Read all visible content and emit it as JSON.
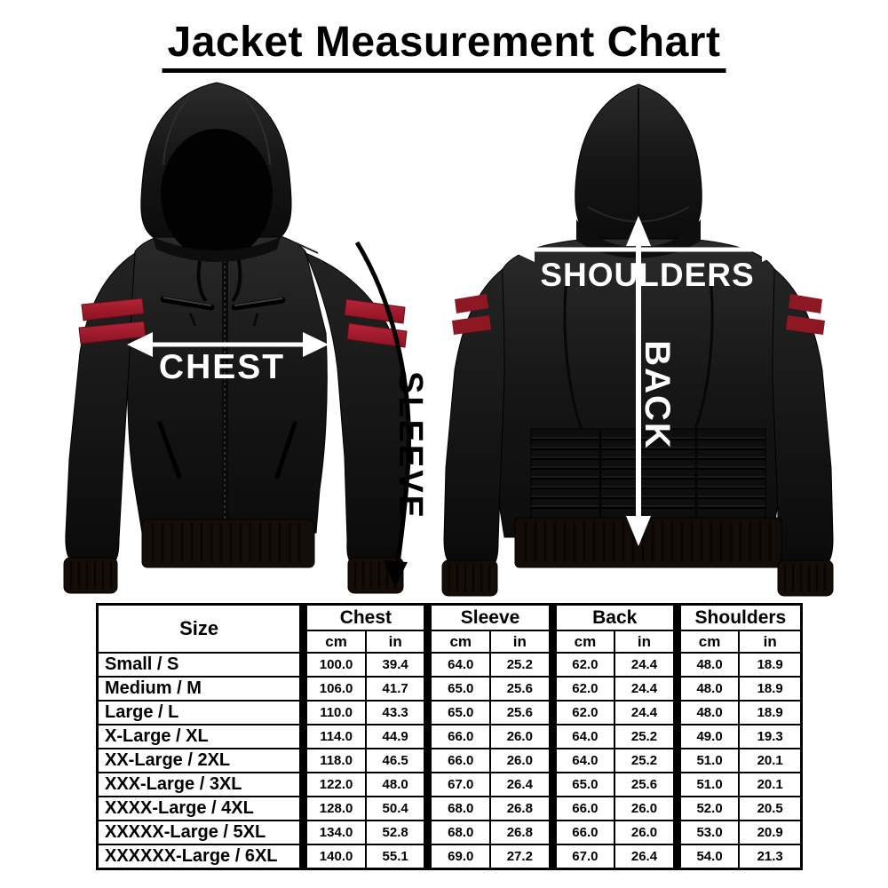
{
  "chart_data": {
    "type": "table",
    "title": "Jacket Measurement Chart",
    "size_header": "Size",
    "groups": [
      {
        "label": "Chest",
        "units": [
          "cm",
          "in"
        ]
      },
      {
        "label": "Sleeve",
        "units": [
          "cm",
          "in"
        ]
      },
      {
        "label": "Back",
        "units": [
          "cm",
          "in"
        ]
      },
      {
        "label": "Shoulders",
        "units": [
          "cm",
          "in"
        ]
      }
    ],
    "rows": [
      {
        "size": "Small / S",
        "values": [
          "100.0",
          "39.4",
          "64.0",
          "25.2",
          "62.0",
          "24.4",
          "48.0",
          "18.9"
        ]
      },
      {
        "size": "Medium / M",
        "values": [
          "106.0",
          "41.7",
          "65.0",
          "25.6",
          "62.0",
          "24.4",
          "48.0",
          "18.9"
        ]
      },
      {
        "size": "Large / L",
        "values": [
          "110.0",
          "43.3",
          "65.0",
          "25.6",
          "62.0",
          "24.4",
          "48.0",
          "18.9"
        ]
      },
      {
        "size": "X-Large / XL",
        "values": [
          "114.0",
          "44.9",
          "66.0",
          "26.0",
          "64.0",
          "25.2",
          "49.0",
          "19.3"
        ]
      },
      {
        "size": "XX-Large / 2XL",
        "values": [
          "118.0",
          "46.5",
          "66.0",
          "26.0",
          "64.0",
          "25.2",
          "51.0",
          "20.1"
        ]
      },
      {
        "size": "XXX-Large / 3XL",
        "values": [
          "122.0",
          "48.0",
          "67.0",
          "26.4",
          "65.0",
          "25.6",
          "51.0",
          "20.1"
        ]
      },
      {
        "size": "XXXX-Large / 4XL",
        "values": [
          "128.0",
          "50.4",
          "68.0",
          "26.8",
          "66.0",
          "26.0",
          "52.0",
          "20.5"
        ]
      },
      {
        "size": "XXXXX-Large / 5XL",
        "values": [
          "134.0",
          "52.8",
          "68.0",
          "26.8",
          "66.0",
          "26.0",
          "53.0",
          "20.9"
        ]
      },
      {
        "size": "XXXXXX-Large / 6XL",
        "values": [
          "140.0",
          "55.1",
          "69.0",
          "27.2",
          "67.0",
          "26.4",
          "54.0",
          "21.3"
        ]
      }
    ]
  },
  "diagram": {
    "front_view": {
      "chest_label": "CHEST",
      "sleeve_label": "SLEEVE"
    },
    "back_view": {
      "shoulders_label": "SHOULDERS",
      "back_label": "BACK"
    },
    "colors": {
      "jacket_leather": "#161616",
      "hood_interior": "#020202",
      "stripe_red": "#a81f30",
      "ribbing_dark": "#150e08",
      "front_arrow": "#ffffff",
      "sleeve_arrow": "#000000",
      "back_arrows": "#ffffff",
      "table_border": "#000000",
      "background": "#ffffff"
    }
  }
}
